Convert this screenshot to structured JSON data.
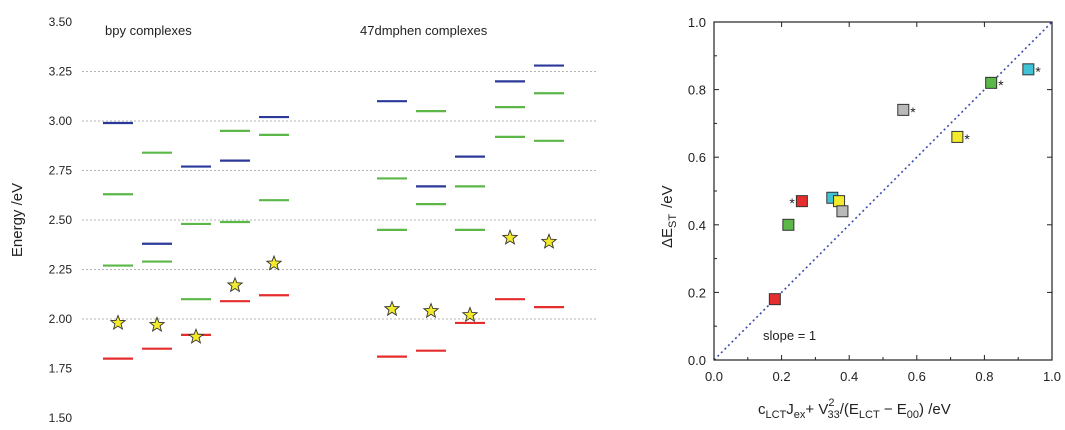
{
  "chart_data": [
    {
      "type": "level-diagram",
      "ylabel": "Energy /eV",
      "ylim": [
        1.5,
        3.5
      ],
      "y_ticks": [
        "1.50",
        "1.75",
        "2.00",
        "2.25",
        "2.50",
        "2.75",
        "3.00",
        "3.25",
        "3.50"
      ],
      "y_tick_values": [
        1.5,
        1.75,
        2.0,
        2.25,
        2.5,
        2.75,
        3.0,
        3.25,
        3.5
      ],
      "grid_lines": [
        2.0,
        2.25,
        2.5,
        2.75,
        3.0,
        3.25
      ],
      "groups": [
        {
          "label": "bpy complexes",
          "columns": [
            0,
            1,
            2,
            3,
            4
          ]
        },
        {
          "label": "47dmphen complexes",
          "columns": [
            5,
            6,
            7,
            8,
            9
          ]
        }
      ],
      "colors": {
        "blue": "#2b3a9a",
        "green": "#5ab748",
        "red": "#e52d2d",
        "star": "#f2ea2a",
        "grid": "#b3b3b3"
      },
      "columns": [
        {
          "blue": [
            2.99
          ],
          "green": [
            2.63,
            2.27
          ],
          "red": [
            1.8
          ],
          "star": 1.98
        },
        {
          "blue": [
            2.38
          ],
          "green": [
            2.84,
            2.29
          ],
          "red": [
            1.85
          ],
          "star": 1.97
        },
        {
          "blue": [
            2.77
          ],
          "green": [
            2.48,
            2.1
          ],
          "red": [
            1.92
          ],
          "star": 1.91
        },
        {
          "blue": [
            2.8
          ],
          "green": [
            2.95,
            2.49
          ],
          "red": [
            2.09
          ],
          "star": 2.17
        },
        {
          "blue": [
            3.02
          ],
          "green": [
            2.93,
            2.6
          ],
          "red": [
            2.12
          ],
          "star": 2.28
        },
        {
          "blue": [
            3.1
          ],
          "green": [
            2.71,
            2.45
          ],
          "red": [
            1.81
          ],
          "star": 2.05
        },
        {
          "blue": [
            2.67
          ],
          "green": [
            3.05,
            2.58
          ],
          "red": [
            1.84
          ],
          "star": 2.04
        },
        {
          "blue": [
            2.82
          ],
          "green": [
            2.67,
            2.45
          ],
          "red": [
            1.98
          ],
          "star": 2.02
        },
        {
          "blue": [
            3.2
          ],
          "green": [
            3.07,
            2.92
          ],
          "red": [
            2.1
          ],
          "star": 2.41
        },
        {
          "blue": [
            3.28
          ],
          "green": [
            3.14,
            2.9
          ],
          "red": [
            2.06
          ],
          "star": 2.39
        }
      ]
    },
    {
      "type": "scatter",
      "xlim": [
        0.0,
        1.0
      ],
      "ylim": [
        0.0,
        1.0
      ],
      "x_ticks": [
        "0.0",
        "0.2",
        "0.4",
        "0.6",
        "0.8",
        "1.0"
      ],
      "x_tick_values": [
        0.0,
        0.2,
        0.4,
        0.6,
        0.8,
        1.0
      ],
      "y_ticks": [
        "0.0",
        "0.2",
        "0.4",
        "0.6",
        "0.8",
        "1.0"
      ],
      "y_tick_values": [
        0.0,
        0.2,
        0.4,
        0.6,
        0.8,
        1.0
      ],
      "ylabel": {
        "main": "ΔE",
        "sub": "ST",
        "unit": "/eV"
      },
      "xlabel": {
        "c": "c",
        "c_sub": "LCT",
        "j": "J",
        "j_sub": "ex",
        "plus": "+ ",
        "v": "V",
        "v_sup": "2",
        "v_sub": "33",
        "open": "/(E",
        "e1_sub": "LCT",
        "minus": " − E",
        "e2_sub": "00",
        "close": ")  /eV"
      },
      "annotation": "slope = 1",
      "fit_line": {
        "x": [
          0.0,
          1.0
        ],
        "y": [
          0.0,
          1.0
        ],
        "color": "#3a4bb0"
      },
      "asterisk": "*",
      "points": [
        {
          "x": 0.18,
          "y": 0.18,
          "color": "#e52d2d",
          "star": false
        },
        {
          "x": 0.26,
          "y": 0.47,
          "color": "#e52d2d",
          "star": true,
          "star_side": "left"
        },
        {
          "x": 0.22,
          "y": 0.4,
          "color": "#5ab748",
          "star": false
        },
        {
          "x": 0.82,
          "y": 0.82,
          "color": "#5ab748",
          "star": true,
          "star_side": "right"
        },
        {
          "x": 0.35,
          "y": 0.48,
          "color": "#41c3d6",
          "star": false
        },
        {
          "x": 0.93,
          "y": 0.86,
          "color": "#41c3d6",
          "star": true,
          "star_side": "right"
        },
        {
          "x": 0.37,
          "y": 0.47,
          "color": "#f2ea2a",
          "star": false
        },
        {
          "x": 0.72,
          "y": 0.66,
          "color": "#f2ea2a",
          "star": true,
          "star_side": "right"
        },
        {
          "x": 0.38,
          "y": 0.44,
          "color": "#b9b9b9",
          "star": false
        },
        {
          "x": 0.56,
          "y": 0.74,
          "color": "#b9b9b9",
          "star": true,
          "star_side": "right"
        }
      ]
    }
  ]
}
